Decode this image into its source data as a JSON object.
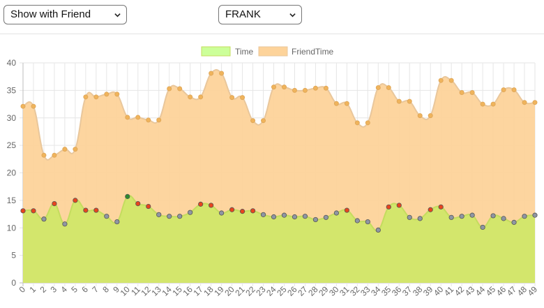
{
  "controls": {
    "mode_select": {
      "value": "Show with Friend",
      "icon": "chevron-down-icon"
    },
    "person_select": {
      "value": "FRANK",
      "icon": "chevron-down-icon"
    }
  },
  "chart_data": {
    "type": "area",
    "categories": [
      "0",
      "1",
      "2",
      "3",
      "4",
      "5",
      "6",
      "7",
      "8",
      "9",
      "10",
      "11",
      "12",
      "13",
      "14",
      "15",
      "16",
      "17",
      "18",
      "19",
      "20",
      "21",
      "22",
      "23",
      "24",
      "25",
      "26",
      "27",
      "28",
      "29",
      "30",
      "31",
      "32",
      "33",
      "34",
      "35",
      "36",
      "37",
      "38",
      "39",
      "40",
      "41",
      "42",
      "43",
      "44",
      "45",
      "46",
      "47",
      "48",
      "49"
    ],
    "ylim": [
      0,
      40
    ],
    "yticks": [
      0,
      5,
      10,
      15,
      20,
      25,
      30,
      35,
      40
    ],
    "grid": true,
    "legend_position": "top-center",
    "series": [
      {
        "name": "Time",
        "fill": "#d3e66c",
        "legend_fill": "#ccff99",
        "stroke": "#c4dc5e",
        "values": [
          13.1,
          13.1,
          11.6,
          14.4,
          10.7,
          15.0,
          13.2,
          13.2,
          12.1,
          11.1,
          15.7,
          14.4,
          13.9,
          12.4,
          12.1,
          12.1,
          12.8,
          14.3,
          14.1,
          12.7,
          13.3,
          13.0,
          13.1,
          12.4,
          12.0,
          12.3,
          12.0,
          12.1,
          11.5,
          11.9,
          12.7,
          13.2,
          11.3,
          11.1,
          9.6,
          13.8,
          14.1,
          11.9,
          11.7,
          13.3,
          13.8,
          11.9,
          12.1,
          12.3,
          10.1,
          12.2,
          11.7,
          11.0,
          12.1,
          12.3
        ],
        "point_colors": [
          "red",
          "red",
          "gray",
          "red",
          "gray",
          "red",
          "red",
          "red",
          "gray",
          "gray",
          "green",
          "red",
          "red",
          "gray",
          "gray",
          "gray",
          "gray",
          "red",
          "red",
          "gray",
          "red",
          "red",
          "red",
          "gray",
          "gray",
          "gray",
          "gray",
          "gray",
          "gray",
          "gray",
          "gray",
          "red",
          "gray",
          "gray",
          "gray",
          "red",
          "red",
          "gray",
          "gray",
          "red",
          "red",
          "gray",
          "gray",
          "gray",
          "gray",
          "gray",
          "gray",
          "gray",
          "gray",
          "gray"
        ]
      },
      {
        "name": "FriendTime",
        "fill": "#fdd39a",
        "legend_fill": "#fdd39a",
        "stroke": "#e9c79c",
        "point_color": "#f0b45c",
        "values": [
          32.1,
          32.1,
          23.2,
          23.2,
          24.3,
          24.3,
          33.8,
          33.8,
          34.3,
          34.3,
          30.1,
          30.1,
          29.6,
          29.6,
          35.3,
          35.3,
          33.8,
          33.8,
          38.1,
          38.1,
          33.7,
          33.7,
          29.5,
          29.5,
          35.6,
          35.6,
          35.0,
          35.0,
          35.4,
          35.4,
          32.6,
          32.6,
          29.1,
          29.1,
          35.5,
          35.5,
          33.0,
          33.0,
          30.4,
          30.4,
          36.8,
          36.8,
          34.6,
          34.6,
          32.5,
          32.5,
          35.1,
          35.1,
          32.8,
          32.8
        ]
      }
    ],
    "marker_colors": {
      "red": "#e8441e",
      "gray": "#8f96a3",
      "green": "#2e8b2e"
    }
  }
}
